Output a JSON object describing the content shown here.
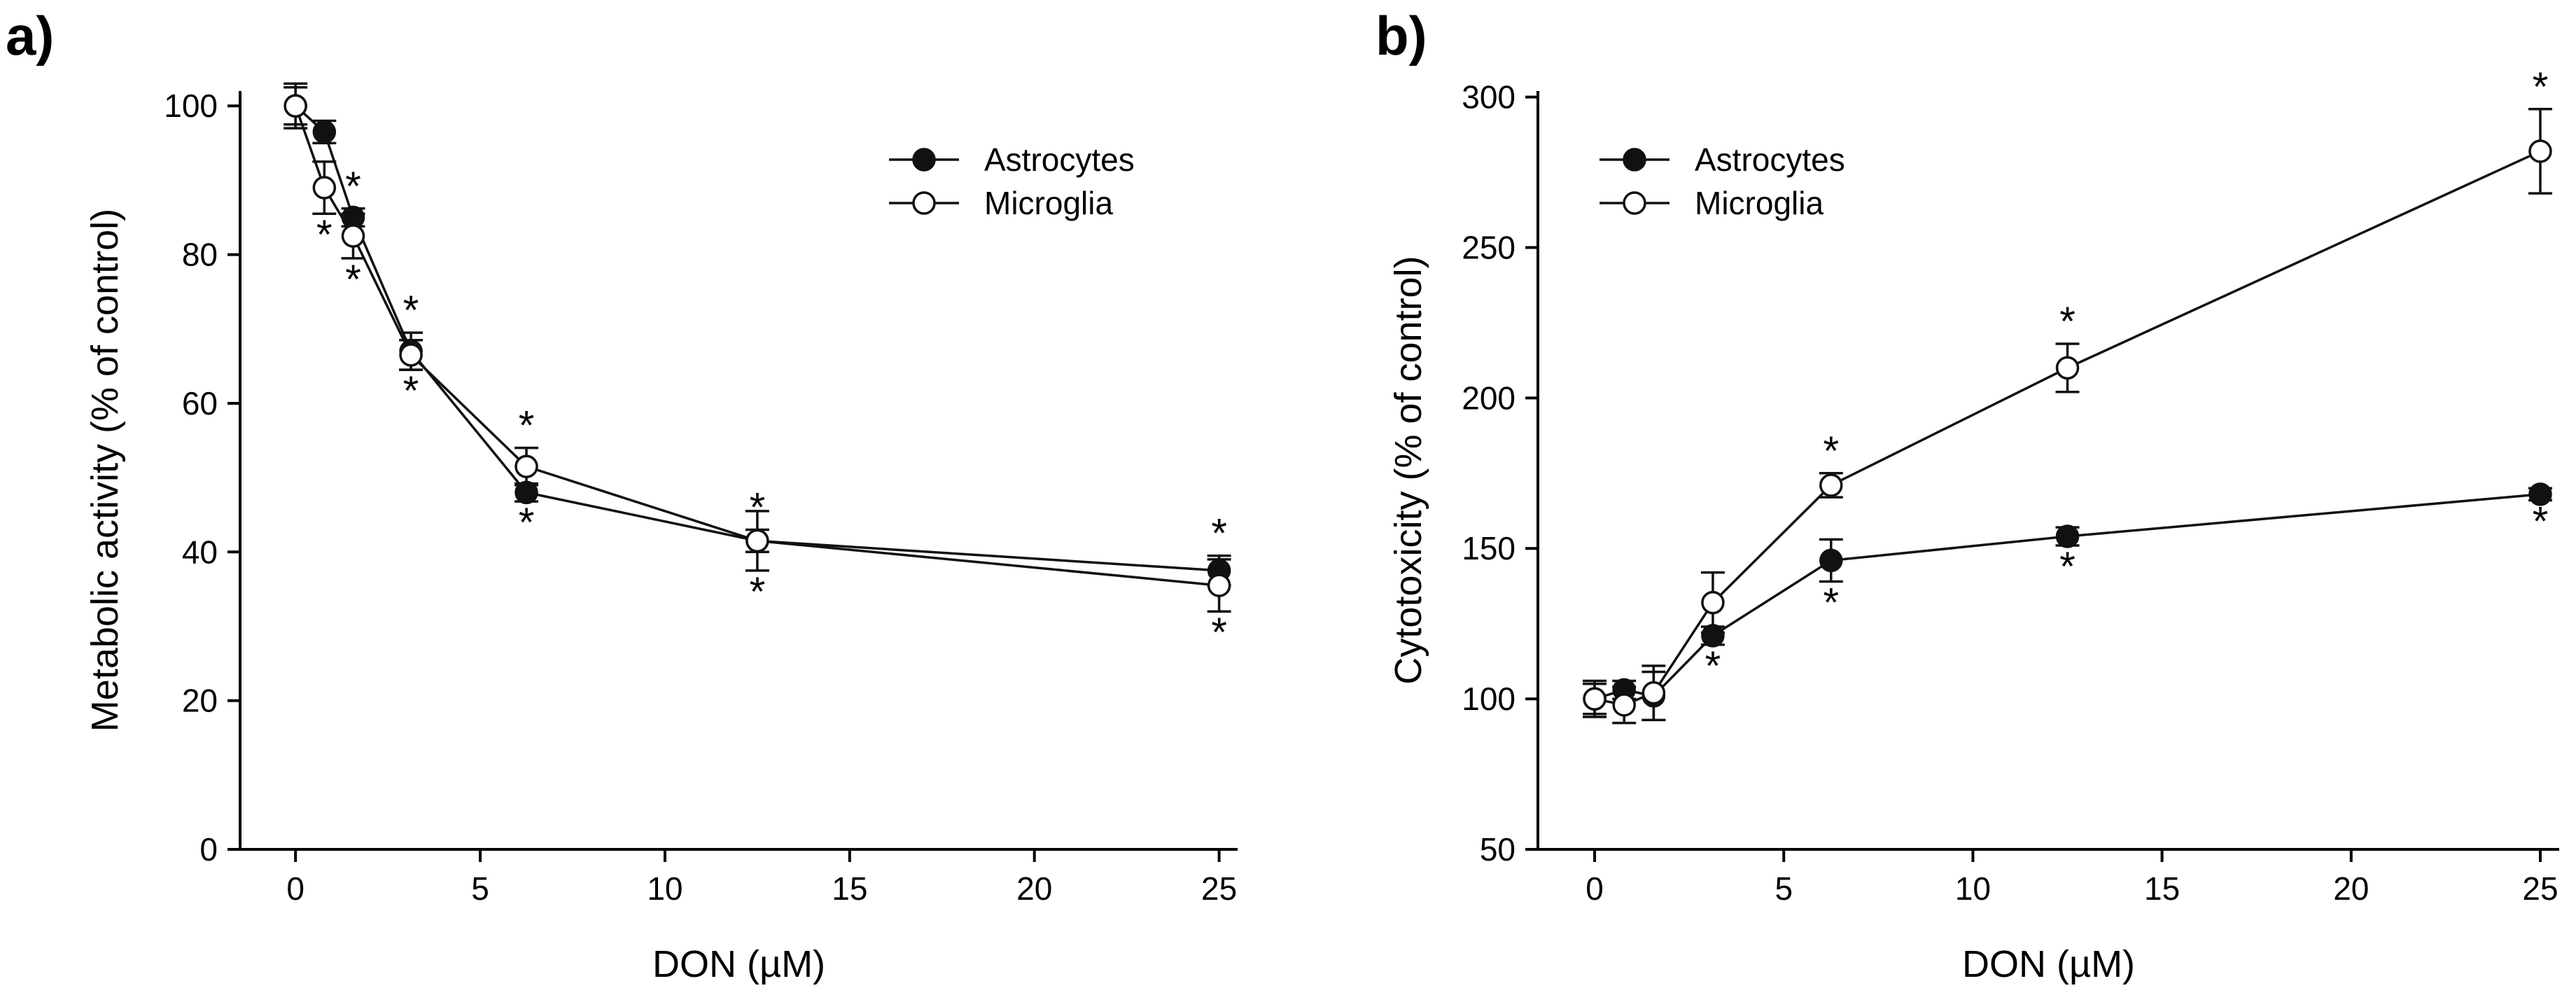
{
  "chart_data": [
    {
      "type": "line",
      "panel_label": "a)",
      "title": "",
      "xlabel": "DON (µM)",
      "ylabel": "Metabolic activity (% of control)",
      "xlim": [
        -1.5,
        25.5
      ],
      "ylim": [
        0,
        102
      ],
      "xticks": [
        0,
        5,
        10,
        15,
        20,
        25
      ],
      "yticks": [
        0,
        20,
        40,
        60,
        80,
        100
      ],
      "x": [
        0,
        0.78,
        1.56,
        3.125,
        6.25,
        12.5,
        25
      ],
      "series": [
        {
          "name": "Astrocytes",
          "marker": "filled-circle",
          "values": [
            100,
            96.5,
            85,
            67,
            48,
            41.5,
            37.5
          ],
          "errors": [
            2.5,
            1.5,
            1.2,
            2.5,
            1.2,
            1.5,
            2
          ],
          "significance": [
            "",
            "",
            "above",
            "above",
            "below",
            "above",
            "above"
          ]
        },
        {
          "name": "Microglia",
          "marker": "open-circle",
          "values": [
            100,
            89,
            82.5,
            66.5,
            51.5,
            41.5,
            35.5
          ],
          "errors": [
            3,
            3.5,
            3,
            2,
            2.5,
            4,
            3.5
          ],
          "significance": [
            "",
            "below",
            "below",
            "below",
            "above",
            "below",
            "below"
          ]
        }
      ],
      "legend": "top-right",
      "significance_symbol": "*"
    },
    {
      "type": "line",
      "panel_label": "b)",
      "title": "",
      "xlabel": "DON (µM)",
      "ylabel": "Cytotoxicity (% of control)",
      "xlim": [
        -1.5,
        25.5
      ],
      "ylim": [
        50,
        302
      ],
      "xticks": [
        0,
        5,
        10,
        15,
        20,
        25
      ],
      "yticks": [
        50,
        100,
        150,
        200,
        250,
        300
      ],
      "x": [
        0,
        0.78,
        1.56,
        3.125,
        6.25,
        12.5,
        25
      ],
      "series": [
        {
          "name": "Astrocytes",
          "marker": "filled-circle",
          "values": [
            100,
            103,
            101,
            121,
            146,
            154,
            168
          ],
          "errors": [
            5,
            3,
            8,
            3,
            7,
            3,
            2
          ],
          "significance": [
            "",
            "",
            "",
            "below",
            "below",
            "below",
            "below"
          ]
        },
        {
          "name": "Microglia",
          "marker": "open-circle",
          "values": [
            100,
            98,
            102,
            132,
            171,
            210,
            282
          ],
          "errors": [
            6,
            6,
            9,
            10,
            4,
            8,
            14
          ],
          "significance": [
            "",
            "",
            "",
            "",
            "above",
            "above",
            "above"
          ]
        }
      ],
      "legend": "top-left",
      "significance_symbol": "*"
    }
  ]
}
